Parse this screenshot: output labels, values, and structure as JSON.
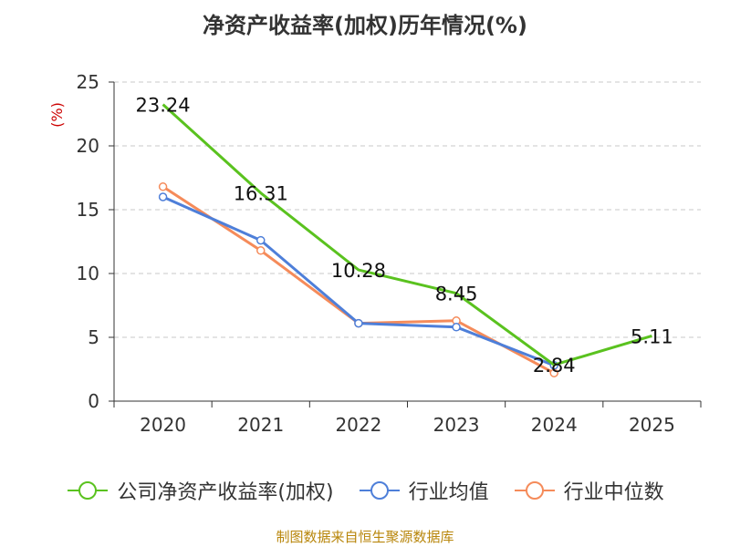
{
  "chart_data": {
    "type": "line",
    "title": "净资产收益率(加权)历年情况(%)",
    "ylabel": "(%)",
    "xlabel": "",
    "categories": [
      "2020",
      "2021",
      "2022",
      "2023",
      "2024",
      "2025"
    ],
    "ylim": [
      0,
      25
    ],
    "yticks": [
      0,
      5,
      10,
      15,
      20,
      25
    ],
    "grid": true,
    "series": [
      {
        "name": "公司净资产收益率(加权)",
        "color": "#5ac21f",
        "values": [
          23.24,
          16.31,
          10.28,
          8.45,
          2.84,
          5.11
        ],
        "labels": [
          "23.24",
          "16.31",
          "10.28",
          "8.45",
          "2.84",
          "5.11"
        ]
      },
      {
        "name": "行业均值",
        "color": "#4e7fd9",
        "values": [
          16.0,
          12.6,
          6.1,
          5.8,
          2.8,
          null
        ]
      },
      {
        "name": "行业中位数",
        "color": "#f58b5a",
        "values": [
          16.8,
          11.8,
          6.1,
          6.3,
          2.2,
          null
        ]
      }
    ]
  },
  "source_note": "制图数据来自恒生聚源数据库"
}
